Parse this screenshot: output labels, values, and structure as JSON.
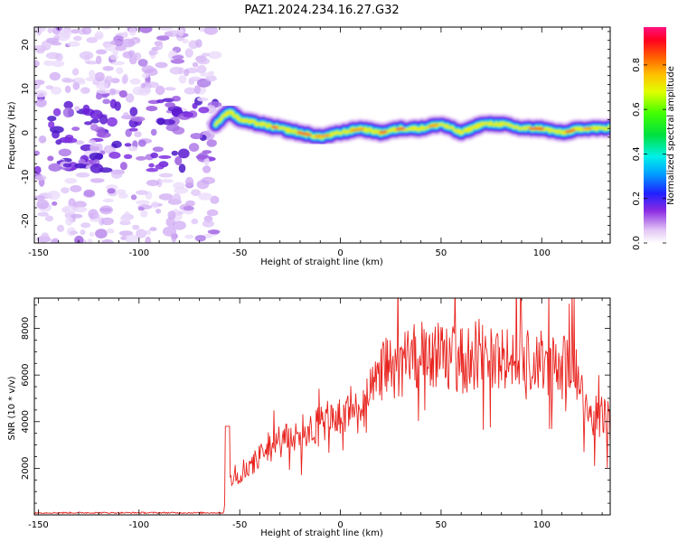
{
  "figure_title": "PAZ1.2024.234.16.27.G32",
  "chart_data": [
    {
      "type": "heatmap",
      "title": "PAZ1.2024.234.16.27.G32",
      "xlabel": "Height of straight line (km)",
      "ylabel": "Frequency (Hz)",
      "xlim": [
        -152,
        134
      ],
      "ylim": [
        -25,
        24
      ],
      "x_ticks": [
        "-150",
        "-100",
        "-50",
        "0",
        "50",
        "100"
      ],
      "y_ticks": [
        "-20",
        "-10",
        "0",
        "10",
        "20"
      ],
      "colorbar": {
        "label": "Normalized spectral amplitude",
        "range": [
          0,
          0.97
        ],
        "ticks": [
          "0.0",
          "0.2",
          "0.4",
          "0.6",
          "0.8"
        ]
      },
      "ridge": {
        "x": [
          -62,
          -55,
          -50,
          -40,
          -30,
          -20,
          -10,
          0,
          10,
          20,
          30,
          40,
          50,
          60,
          70,
          80,
          90,
          100,
          110,
          120,
          134
        ],
        "y": [
          2,
          5,
          3,
          2,
          1,
          0,
          -1,
          0,
          1,
          0,
          1,
          1,
          2,
          0,
          2,
          2,
          1,
          1,
          0,
          1,
          1
        ]
      },
      "noise_region_x": [
        -152,
        -62
      ]
    },
    {
      "type": "line",
      "xlabel": "Height of straight line (km)",
      "ylabel": "SNR (10 * v/v)",
      "xlim": [
        -152,
        134
      ],
      "ylim": [
        0,
        9300
      ],
      "x_ticks": [
        "-150",
        "-100",
        "-50",
        "0",
        "50",
        "100"
      ],
      "y_ticks": [
        "2000",
        "4000",
        "6000",
        "8000"
      ],
      "series_color": "#e8231e",
      "envelope": {
        "x": [
          -152,
          -100,
          -58,
          -56,
          -50,
          -40,
          -30,
          -20,
          -10,
          0,
          10,
          17,
          20,
          30,
          40,
          50,
          60,
          70,
          80,
          90,
          100,
          110,
          120,
          121,
          128,
          134
        ],
        "y": [
          60,
          60,
          60,
          1400,
          1600,
          2500,
          3100,
          3500,
          3900,
          4200,
          4500,
          5400,
          6200,
          6400,
          6900,
          6800,
          6600,
          7000,
          6600,
          6500,
          6500,
          6300,
          6200,
          4000,
          4200,
          4000
        ]
      }
    }
  ]
}
